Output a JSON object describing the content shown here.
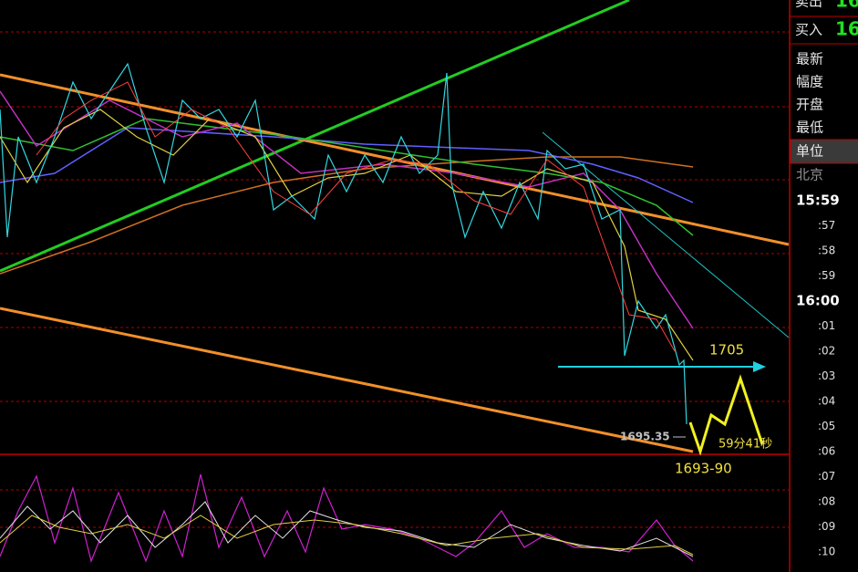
{
  "quote_panel": {
    "sell_label": "卖出",
    "sell_value": "16",
    "buy_label": "买入",
    "buy_value": "16",
    "rows": [
      "最新",
      "幅度",
      "开盘",
      "最低",
      "单位"
    ],
    "zone": "北京"
  },
  "time_list": [
    "15:59",
    ":57",
    ":58",
    ":59",
    "16:00",
    ":01",
    ":02",
    ":03",
    ":04",
    ":05",
    ":06",
    ":07",
    ":08",
    ":09",
    ":10"
  ],
  "annotations": {
    "target": "1705",
    "low_marker": "1695.35",
    "support": "1693-90",
    "timer": "59分41秒"
  }
}
